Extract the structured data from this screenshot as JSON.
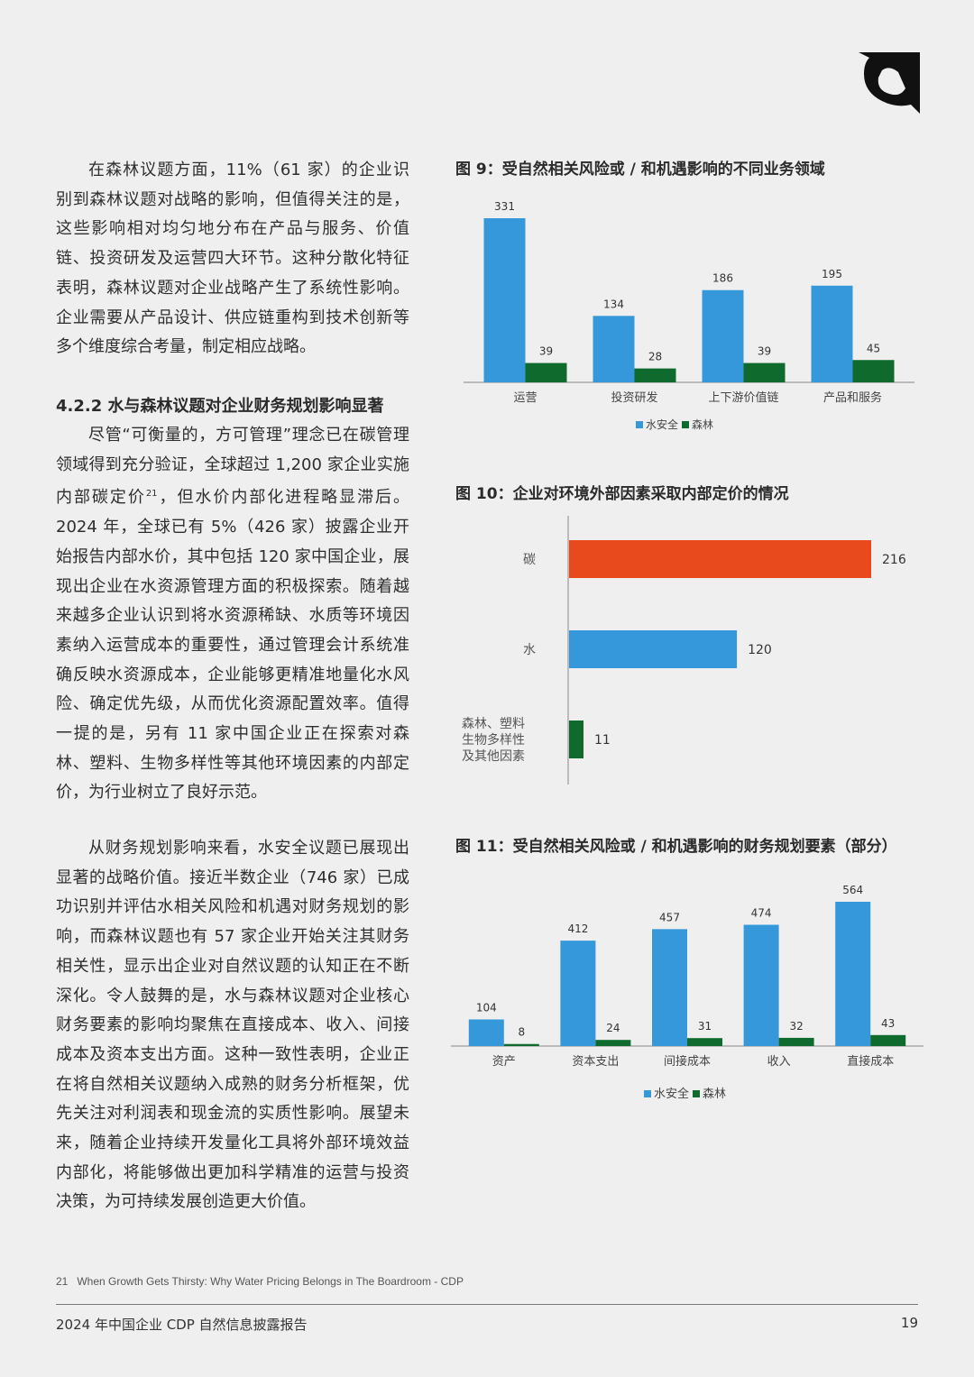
{
  "logo": {
    "icon": "cdp-corner-logo-icon"
  },
  "body": {
    "para1": "在森林议题方面，11%（61 家）的企业识别到森林议题对战略的影响，但值得关注的是，这些影响相对均匀地分布在产品与服务、价值链、投资研发及运营四大环节。这种分散化特征表明，森林议题对企业战略产生了系统性影响。企业需要从产品设计、供应链重构到技术创新等多个维度综合考量，制定相应战略。",
    "section_heading": "4.2.2 水与森林议题对企业财务规划影响显著",
    "para2_a": "尽管“可衡量的，方可管理”理念已在碳管理领域得到充分验证，全球超过 1,200 家企业实施内部碳定价",
    "para2_sup": "21",
    "para2_b": "，但水价内部化进程略显滞后。2024 年，全球已有 5%（426 家）披露企业开始报告内部水价，其中包括 120 家中国企业，展现出企业在水资源管理方面的积极探索。随着越来越多企业认识到将水资源稀缺、水质等环境因素纳入运营成本的重要性，通过管理会计系统准确反映水资源成本，企业能够更精准地量化水风险、确定优先级，从而优化资源配置效率。值得一提的是，另有 11 家中国企业正在探索对森林、塑料、生物多样性等其他环境因素的内部定价，为行业树立了良好示范。",
    "para3": "从财务规划影响来看，水安全议题已展现出显著的战略价值。接近半数企业（746 家）已成功识别并评估水相关风险和机遇对财务规划的影响，而森林议题也有 57 家企业开始关注其财务相关性，显示出企业对自然议题的认知正在不断深化。令人鼓舞的是，水与森林议题对企业核心财务要素的影响均聚焦在直接成本、收入、间接成本及资本支出方面。这种一致性表明，企业正在将自然相关议题纳入成熟的财务分析框架，优先关注对利润表和现金流的实质性影响。展望未来，随着企业持续开发量化工具将外部环境效益内部化，将能够做出更加科学精准的运营与投资决策，为可持续发展创造更大价值。"
  },
  "footnote": {
    "number": "21",
    "text": "When Growth Gets Thirsty: Why Water Pricing Belongs in The Boardroom - CDP"
  },
  "footer": {
    "report_title": "2024 年中国企业 CDP 自然信息披露报告",
    "page_number": "19"
  },
  "colors": {
    "water": "#3498db",
    "forest": "#0e6b2d",
    "carbon": "#e8491d",
    "text": "#2b2b2b",
    "axis": "#aaaaaa"
  },
  "chart_data": [
    {
      "id": "fig9",
      "type": "bar",
      "title": "图 9：受自然相关风险或 / 和机遇影响的不同业务领域",
      "categories": [
        "运营",
        "投资研发",
        "上下游价值链",
        "产品和服务"
      ],
      "series": [
        {
          "name": "水安全",
          "values": [
            331,
            134,
            186,
            195
          ]
        },
        {
          "name": "森林",
          "values": [
            39,
            28,
            39,
            45
          ]
        }
      ],
      "ylim": [
        0,
        331
      ],
      "grid": false,
      "legend": "bottom"
    },
    {
      "id": "fig10",
      "type": "bar",
      "orientation": "horizontal",
      "title": "图 10：企业对环境外部因素采取内部定价的情况",
      "categories": [
        [
          "碳"
        ],
        [
          "水"
        ],
        [
          "森林、塑料",
          "生物多样性",
          "及其他因素"
        ]
      ],
      "values": [
        216,
        120,
        11
      ],
      "xlim": [
        0,
        216
      ],
      "grid": false
    },
    {
      "id": "fig11",
      "type": "bar",
      "title": "图 11：受自然相关风险或 / 和机遇影响的财务规划要素（部分）",
      "categories": [
        "资产",
        "资本支出",
        "间接成本",
        "收入",
        "直接成本"
      ],
      "series": [
        {
          "name": "水安全",
          "values": [
            104,
            412,
            457,
            474,
            564
          ]
        },
        {
          "name": "森林",
          "values": [
            8,
            24,
            31,
            32,
            43
          ]
        }
      ],
      "ylim": [
        0,
        564
      ],
      "grid": false,
      "legend": "bottom"
    }
  ]
}
